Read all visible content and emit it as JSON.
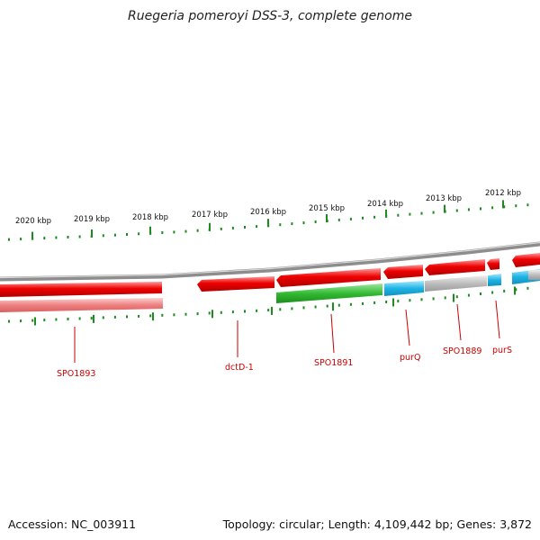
{
  "title": "Ruegeria pomeroyi DSS-3, complete genome",
  "footer": {
    "accession": "Accession: NC_003911",
    "summary": "Topology: circular; Length: 4,109,442 bp; Genes: 3,872"
  },
  "colors": {
    "tick": "#1f8a1f",
    "backbone": "#8a8a8a",
    "gene_red": "#e60000",
    "gene_pink": "#f08080",
    "gene_green": "#33bb33",
    "gene_blue": "#1eb4e6",
    "gene_gray": "#bdbdbd",
    "label": "#cc0000"
  },
  "scale_labels": [
    "2020 kbp",
    "2019 kbp",
    "2018 kbp",
    "2017 kbp",
    "2016 kbp",
    "2015 kbp",
    "2014 kbp",
    "2013 kbp",
    "2012 kbp"
  ],
  "gene_labels": [
    "SPO1893",
    "dctD-1",
    "SPO1891",
    "purQ",
    "SPO1889",
    "purS"
  ]
}
